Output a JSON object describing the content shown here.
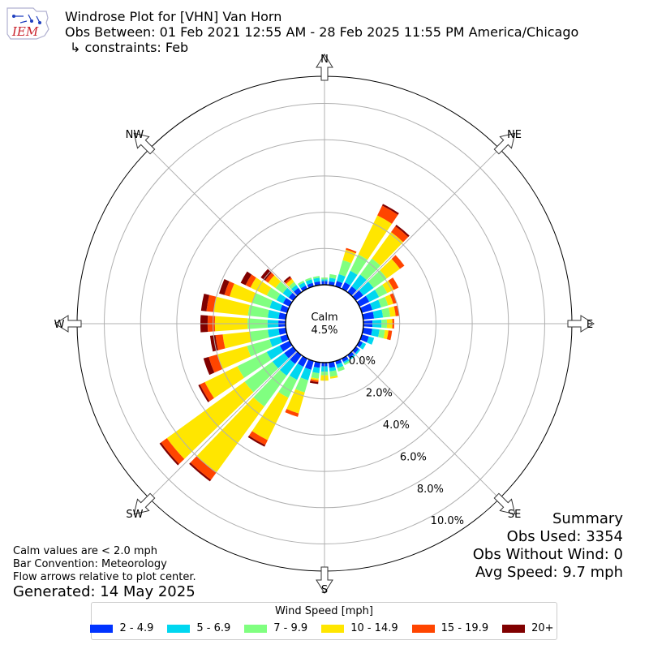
{
  "header": {
    "title_line1": "Windrose Plot for [VHN] Van Horn",
    "title_line2": "Obs Between: 01 Feb 2021 12:55 AM - 28 Feb 2025 11:55 PM America/Chicago",
    "title_line3": "↳ constraints: Feb"
  },
  "logo": {
    "text": "IEM"
  },
  "summary": {
    "title": "Summary",
    "obs_used": "Obs Used: 3354",
    "obs_without_wind": "Obs Without Wind: 0",
    "avg_speed": "Avg Speed: 9.7 mph"
  },
  "notes": {
    "calm": "Calm values are < 2.0 mph",
    "bar_convention": "Bar Convention: Meteorology",
    "flow_arrows": "Flow arrows relative to plot center."
  },
  "generated": "Generated: 14 May 2025",
  "chart_data": {
    "type": "windrose",
    "calm_label": "Calm",
    "calm_value": "4.5%",
    "calm_percent": 4.5,
    "radial_max": 11.5,
    "radial_ticks": [
      0,
      2,
      4,
      6,
      8,
      10
    ],
    "radial_tick_labels": [
      "0.0%",
      "2.0%",
      "4.0%",
      "6.0%",
      "8.0%",
      "10.0%"
    ],
    "direction_labels": [
      {
        "label": "N",
        "angle": 0
      },
      {
        "label": "NE",
        "angle": 45
      },
      {
        "label": "E",
        "angle": 90
      },
      {
        "label": "SE",
        "angle": 135
      },
      {
        "label": "S",
        "angle": 180
      },
      {
        "label": "SW",
        "angle": 225
      },
      {
        "label": "W",
        "angle": 270
      },
      {
        "label": "NW",
        "angle": 315
      }
    ],
    "legend_title": "Wind Speed [mph]",
    "speed_bins": [
      "2 - 4.9",
      "5 - 6.9",
      "7 - 9.9",
      "10 - 14.9",
      "15 - 19.9",
      "20+"
    ],
    "colors": [
      "#0033ff",
      "#00d7f0",
      "#80ff80",
      "#ffe600",
      "#ff4500",
      "#800000"
    ],
    "direction_step_deg": 10,
    "directions": [
      {
        "dir": 0,
        "values": [
          0.2,
          0.1,
          0.1,
          0.0,
          0.0,
          0.0
        ]
      },
      {
        "dir": 10,
        "values": [
          0.2,
          0.2,
          0.2,
          0.0,
          0.0,
          0.0
        ]
      },
      {
        "dir": 20,
        "values": [
          0.3,
          0.4,
          0.8,
          0.6,
          0.1,
          0.0
        ]
      },
      {
        "dir": 30,
        "values": [
          0.4,
          0.7,
          1.0,
          2.4,
          0.6,
          0.1
        ]
      },
      {
        "dir": 40,
        "values": [
          0.4,
          0.8,
          1.1,
          1.8,
          0.4,
          0.1
        ]
      },
      {
        "dir": 50,
        "values": [
          0.5,
          0.7,
          0.9,
          0.9,
          0.3,
          0.0
        ]
      },
      {
        "dir": 60,
        "values": [
          0.6,
          0.6,
          0.5,
          0.4,
          0.3,
          0.0
        ]
      },
      {
        "dir": 70,
        "values": [
          0.6,
          0.5,
          0.4,
          0.3,
          0.2,
          0.0
        ]
      },
      {
        "dir": 80,
        "values": [
          0.6,
          0.5,
          0.4,
          0.3,
          0.2,
          0.0
        ]
      },
      {
        "dir": 90,
        "values": [
          0.5,
          0.5,
          0.3,
          0.3,
          0.1,
          0.0
        ]
      },
      {
        "dir": 100,
        "values": [
          0.5,
          0.4,
          0.3,
          0.2,
          0.2,
          0.0
        ]
      },
      {
        "dir": 110,
        "values": [
          0.4,
          0.3,
          0.0,
          0.0,
          0.0,
          0.0
        ]
      },
      {
        "dir": 120,
        "values": [
          0.2,
          0.2,
          0.0,
          0.0,
          0.0,
          0.0
        ]
      },
      {
        "dir": 130,
        "values": [
          0.2,
          0.1,
          0.0,
          0.0,
          0.0,
          0.0
        ]
      },
      {
        "dir": 140,
        "values": [
          0.2,
          0.1,
          0.0,
          0.0,
          0.0,
          0.0
        ]
      },
      {
        "dir": 150,
        "values": [
          0.2,
          0.1,
          0.1,
          0.0,
          0.0,
          0.0
        ]
      },
      {
        "dir": 160,
        "values": [
          0.2,
          0.2,
          0.2,
          0.0,
          0.0,
          0.0
        ]
      },
      {
        "dir": 170,
        "values": [
          0.3,
          0.2,
          0.3,
          0.1,
          0.0,
          0.0
        ]
      },
      {
        "dir": 180,
        "values": [
          0.2,
          0.3,
          0.2,
          0.3,
          0.0,
          0.0
        ]
      },
      {
        "dir": 190,
        "values": [
          0.3,
          0.3,
          0.3,
          0.1,
          0.1,
          0.1
        ]
      },
      {
        "dir": 200,
        "values": [
          0.5,
          0.6,
          0.7,
          1.2,
          0.2,
          0.0
        ]
      },
      {
        "dir": 210,
        "values": [
          0.5,
          0.8,
          1.1,
          2.6,
          0.3,
          0.1
        ]
      },
      {
        "dir": 220,
        "values": [
          0.6,
          0.8,
          2.1,
          4.5,
          0.5,
          0.1
        ]
      },
      {
        "dir": 230,
        "values": [
          0.6,
          0.8,
          1.9,
          5.3,
          0.4,
          0.1
        ]
      },
      {
        "dir": 240,
        "values": [
          0.6,
          0.8,
          1.8,
          2.0,
          0.3,
          0.1
        ]
      },
      {
        "dir": 250,
        "values": [
          0.4,
          0.6,
          1.3,
          1.7,
          0.5,
          0.3
        ]
      },
      {
        "dir": 260,
        "values": [
          0.4,
          0.6,
          1.0,
          1.5,
          0.4,
          0.3
        ]
      },
      {
        "dir": 270,
        "values": [
          0.4,
          0.6,
          1.1,
          1.8,
          0.4,
          0.4
        ]
      },
      {
        "dir": 280,
        "values": [
          0.4,
          0.6,
          1.1,
          1.9,
          0.4,
          0.3
        ]
      },
      {
        "dir": 290,
        "values": [
          0.4,
          0.6,
          1.0,
          1.3,
          0.3,
          0.3
        ]
      },
      {
        "dir": 300,
        "values": [
          0.4,
          0.4,
          0.6,
          1.0,
          0.3,
          0.3
        ]
      },
      {
        "dir": 310,
        "values": [
          0.3,
          0.4,
          0.5,
          0.5,
          0.2,
          0.3
        ]
      },
      {
        "dir": 320,
        "values": [
          0.3,
          0.2,
          0.2,
          0.2,
          0.1,
          0.1
        ]
      },
      {
        "dir": 330,
        "values": [
          0.2,
          0.2,
          0.1,
          0.0,
          0.0,
          0.0
        ]
      },
      {
        "dir": 340,
        "values": [
          0.2,
          0.2,
          0.1,
          0.0,
          0.0,
          0.0
        ]
      },
      {
        "dir": 350,
        "values": [
          0.2,
          0.2,
          0.1,
          0.0,
          0.0,
          0.0
        ]
      }
    ]
  }
}
